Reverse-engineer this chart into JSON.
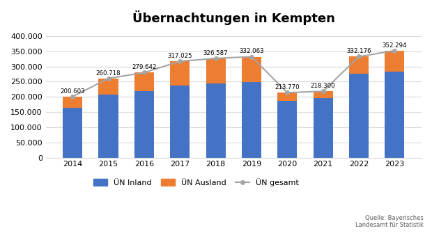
{
  "years": [
    2014,
    2015,
    2016,
    2017,
    2018,
    2019,
    2020,
    2021,
    2022,
    2023
  ],
  "inland": [
    163000,
    208000,
    218000,
    238000,
    244000,
    248000,
    187000,
    195000,
    277000,
    282000
  ],
  "ausland": [
    37603,
    52718,
    61642,
    79025,
    82587,
    84063,
    26770,
    23300,
    55176,
    70294
  ],
  "gesamt": [
    200603,
    260718,
    279642,
    317025,
    326587,
    332063,
    213770,
    218300,
    332176,
    352294
  ],
  "gesamt_labels": [
    "200.603",
    "260.718",
    "279.642",
    "317.025",
    "326.587",
    "332.063",
    "213.770",
    "218.300",
    "332.176",
    "352.294"
  ],
  "title": "Übernachtungen in Kempten",
  "color_inland": "#4472C4",
  "color_ausland": "#ED7D31",
  "color_line": "#A5A5A5",
  "color_marker_face": "#A5A5A5",
  "color_marker_edge": "#A5A5A5",
  "ylim": [
    0,
    420000
  ],
  "yticks": [
    0,
    50000,
    100000,
    150000,
    200000,
    250000,
    300000,
    350000,
    400000
  ],
  "ytick_labels": [
    "0",
    "50.000",
    "100.000",
    "150.000",
    "200.000",
    "250.000",
    "300.000",
    "350.000",
    "400.000"
  ],
  "legend_labels": [
    "ÜN Inland",
    "ÜN Ausland",
    "ÜN gesamt"
  ],
  "source_text": "Quelle: Bayerisches\nLandesamt für Statistik",
  "bar_width": 0.55
}
